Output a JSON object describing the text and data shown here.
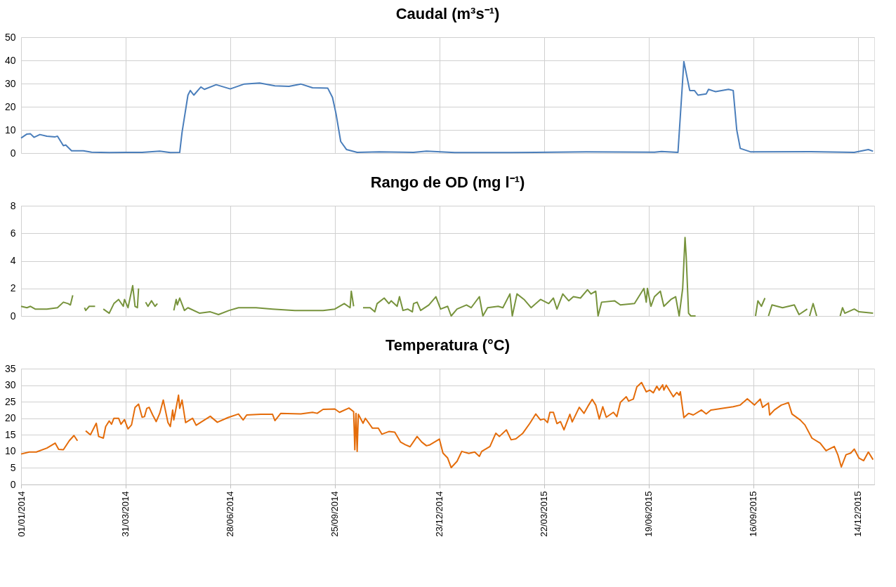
{
  "chart_data": [
    {
      "type": "line",
      "title": "Caudal (m³s⁻¹)",
      "color": "#4a7ebb",
      "grid": true,
      "tick_labels": "y",
      "xlim": [
        "2014-01-01",
        "2015-12-28"
      ],
      "xticks": [
        {
          "value": "2014-01-01",
          "label": null
        },
        {
          "value": "2014-03-31",
          "label": null
        },
        {
          "value": "2014-06-28",
          "label": null
        },
        {
          "value": "2014-09-25",
          "label": null
        },
        {
          "value": "2014-12-23",
          "label": null
        },
        {
          "value": "2015-03-22",
          "label": null
        },
        {
          "value": "2015-06-19",
          "label": null
        },
        {
          "value": "2015-09-16",
          "label": null
        },
        {
          "value": "2015-12-14",
          "label": null
        }
      ],
      "ylim": [
        0,
        50
      ],
      "yticks": [
        0,
        10,
        20,
        30,
        40,
        50
      ],
      "x": [
        "2014-01-01",
        "2014-01-06",
        "2014-01-09",
        "2014-01-12",
        "2014-01-17",
        "2014-01-23",
        "2014-01-30",
        "2014-02-01",
        "2014-02-06",
        "2014-02-08",
        "2014-02-13",
        "2014-02-23",
        "2014-03-02",
        "2014-03-17",
        "2014-03-31",
        "2014-04-14",
        "2014-04-29",
        "2014-05-08",
        "2014-05-16",
        "2014-05-18",
        "2014-05-23",
        "2014-05-25",
        "2014-05-28",
        "2014-06-03",
        "2014-06-06",
        "2014-06-16",
        "2014-06-28",
        "2014-07-10",
        "2014-07-23",
        "2014-08-05",
        "2014-08-17",
        "2014-08-27",
        "2014-09-06",
        "2014-09-19",
        "2014-09-23",
        "2014-09-26",
        "2014-09-30",
        "2014-10-05",
        "2014-10-14",
        "2014-11-02",
        "2014-12-01",
        "2014-12-12",
        "2015-01-05",
        "2015-02-22",
        "2015-04-27",
        "2015-06-24",
        "2015-06-30",
        "2015-07-14",
        "2015-07-19",
        "2015-07-24",
        "2015-07-28",
        "2015-07-31",
        "2015-08-07",
        "2015-08-09",
        "2015-08-15",
        "2015-08-26",
        "2015-08-30",
        "2015-09-02",
        "2015-09-05",
        "2015-09-14",
        "2015-11-04",
        "2015-12-11",
        "2015-12-23",
        "2015-12-27"
      ],
      "values": [
        6.5,
        8.2,
        8.3,
        6.8,
        8.0,
        7.3,
        7.0,
        7.3,
        3.2,
        3.5,
        1.0,
        1.0,
        0.4,
        0.2,
        0.3,
        0.3,
        0.8,
        0.2,
        0.3,
        9,
        25,
        27,
        25,
        28.5,
        27.5,
        29.5,
        27.7,
        29.8,
        30.2,
        29,
        28.8,
        29.8,
        28.2,
        28,
        24,
        17,
        5,
        1.5,
        0.3,
        0.5,
        0.3,
        0.8,
        0.2,
        0.2,
        0.5,
        0.4,
        0.7,
        0.3,
        39.5,
        27,
        27,
        25,
        25.5,
        27.5,
        26.5,
        27.5,
        27,
        10,
        2,
        0.5,
        0.6,
        0.3,
        1.5,
        0.8
      ]
    },
    {
      "type": "line",
      "title": "Rango de OD (mg l⁻¹)",
      "color": "#77933c",
      "grid": true,
      "tick_labels": "y",
      "xlim": [
        "2014-01-01",
        "2015-12-28"
      ],
      "xticks": [
        {
          "value": "2014-01-01",
          "label": null
        },
        {
          "value": "2014-03-31",
          "label": null
        },
        {
          "value": "2014-06-28",
          "label": null
        },
        {
          "value": "2014-09-25",
          "label": null
        },
        {
          "value": "2014-12-23",
          "label": null
        },
        {
          "value": "2015-03-22",
          "label": null
        },
        {
          "value": "2015-06-19",
          "label": null
        },
        {
          "value": "2015-09-16",
          "label": null
        },
        {
          "value": "2015-12-14",
          "label": null
        }
      ],
      "ylim": [
        0,
        8
      ],
      "yticks": [
        0,
        2,
        4,
        6,
        8
      ],
      "x": [
        "2014-01-01",
        "2014-01-06",
        "2014-01-09",
        "2014-01-13",
        "2014-01-23",
        "2014-02-01",
        "2014-02-06",
        "2014-02-10",
        "2014-02-12",
        "2014-02-14",
        "2014-02-17",
        "2014-02-24",
        "2014-02-25",
        "2014-02-28",
        "2014-03-05",
        "2014-03-08",
        "2014-03-12",
        "2014-03-17",
        "2014-03-21",
        "2014-03-25",
        "2014-03-29",
        "2014-03-30",
        "2014-04-02",
        "2014-04-06",
        "2014-04-08",
        "2014-04-10",
        "2014-04-11",
        "2014-04-14",
        "2014-04-17",
        "2014-04-19",
        "2014-04-22",
        "2014-04-25",
        "2014-04-27",
        "2014-05-01",
        "2014-05-11",
        "2014-05-13",
        "2014-05-14",
        "2014-05-16",
        "2014-05-20",
        "2014-05-23",
        "2014-06-02",
        "2014-06-11",
        "2014-06-18",
        "2014-06-27",
        "2014-07-05",
        "2014-07-20",
        "2014-08-03",
        "2014-08-22",
        "2014-09-15",
        "2014-09-25",
        "2014-10-03",
        "2014-10-08",
        "2014-10-09",
        "2014-10-11",
        "2014-10-15",
        "2014-10-19",
        "2014-10-25",
        "2014-10-29",
        "2014-10-31",
        "2014-11-06",
        "2014-11-10",
        "2014-11-12",
        "2014-11-17",
        "2014-11-19",
        "2014-11-22",
        "2014-11-26",
        "2014-11-30",
        "2014-12-01",
        "2014-12-04",
        "2014-12-07",
        "2014-12-14",
        "2014-12-20",
        "2014-12-24",
        "2014-12-30",
        "2015-01-02",
        "2015-01-07",
        "2015-01-15",
        "2015-01-19",
        "2015-01-26",
        "2015-01-29",
        "2015-02-02",
        "2015-02-11",
        "2015-02-15",
        "2015-02-21",
        "2015-02-23",
        "2015-02-27",
        "2015-03-05",
        "2015-03-11",
        "2015-03-19",
        "2015-03-26",
        "2015-03-30",
        "2015-04-02",
        "2015-04-07",
        "2015-04-12",
        "2015-04-16",
        "2015-04-22",
        "2015-04-28",
        "2015-05-01",
        "2015-05-05",
        "2015-05-07",
        "2015-05-10",
        "2015-05-21",
        "2015-05-26",
        "2015-06-07",
        "2015-06-15",
        "2015-06-17",
        "2015-06-18",
        "2015-06-21",
        "2015-06-24",
        "2015-06-29",
        "2015-07-02",
        "2015-07-08",
        "2015-07-12",
        "2015-07-15",
        "2015-07-18",
        "2015-07-20",
        "2015-07-21",
        "2015-07-23",
        "2015-07-25",
        "2015-07-29",
        "2015-08-02",
        "2015-09-18",
        "2015-09-20",
        "2015-09-23",
        "2015-09-26",
        "2015-09-27",
        "2015-09-29",
        "2015-10-02",
        "2015-10-11",
        "2015-10-21",
        "2015-10-25",
        "2015-11-01",
        "2015-11-02",
        "2015-11-03",
        "2015-11-06",
        "2015-11-09",
        "2015-11-12",
        "2015-11-29",
        "2015-12-01",
        "2015-12-03",
        "2015-12-11",
        "2015-12-15",
        "2015-12-27"
      ],
      "values": [
        0.7,
        0.6,
        0.7,
        0.5,
        0.5,
        0.6,
        1.0,
        0.9,
        0.8,
        1.5,
        null,
        0.6,
        0.4,
        0.7,
        0.7,
        null,
        0.5,
        0.2,
        0.9,
        1.2,
        0.7,
        1.2,
        0.6,
        2.2,
        0.7,
        0.6,
        2.0,
        null,
        1.0,
        0.7,
        1.1,
        0.7,
        0.9,
        null,
        0.4,
        1.2,
        0.8,
        1.3,
        0.4,
        0.6,
        0.2,
        0.3,
        0.1,
        0.4,
        0.6,
        0.6,
        0.5,
        0.4,
        0.4,
        0.5,
        0.9,
        0.6,
        1.8,
        0.7,
        null,
        0.6,
        0.6,
        0.3,
        0.9,
        1.3,
        0.9,
        1.1,
        0.7,
        1.4,
        0.4,
        0.5,
        0.3,
        0.9,
        1.0,
        0.4,
        0.8,
        1.4,
        0.5,
        0.7,
        0.0,
        0.5,
        0.8,
        0.6,
        1.4,
        0.0,
        0.6,
        0.7,
        0.6,
        1.6,
        0.0,
        1.6,
        1.2,
        0.6,
        1.2,
        0.9,
        1.3,
        0.5,
        1.6,
        1.1,
        1.4,
        1.3,
        1.9,
        1.6,
        1.8,
        0.0,
        1.0,
        1.1,
        0.8,
        0.9,
        2.0,
        1.0,
        2.0,
        0.7,
        1.4,
        1.8,
        0.7,
        1.2,
        1.4,
        0.0,
        2.0,
        5.7,
        4.3,
        0.2,
        0.0,
        0.0,
        null,
        0.0,
        1.1,
        0.7,
        1.3,
        null,
        0.0,
        0.8,
        0.6,
        0.8,
        0.1,
        0.5,
        null,
        0.0,
        0.9,
        0.0,
        null,
        0.0,
        0.6,
        0.2,
        0.5,
        0.3,
        0.2
      ]
    },
    {
      "type": "line",
      "title": "Temperatura (°C)",
      "color": "#e46c0a",
      "grid": true,
      "xlim": [
        "2014-01-01",
        "2015-12-28"
      ],
      "xticks": [
        {
          "value": "2014-01-01",
          "label": "01/01/2014"
        },
        {
          "value": "2014-03-31",
          "label": "31/03/2014"
        },
        {
          "value": "2014-06-28",
          "label": "28/06/2014"
        },
        {
          "value": "2014-09-25",
          "label": "25/09/2014"
        },
        {
          "value": "2014-12-23",
          "label": "23/12/2014"
        },
        {
          "value": "2015-03-22",
          "label": "22/03/2015"
        },
        {
          "value": "2015-06-19",
          "label": "19/06/2015"
        },
        {
          "value": "2015-09-16",
          "label": "16/09/2015"
        },
        {
          "value": "2015-12-14",
          "label": "14/12/2015"
        }
      ],
      "ylim": [
        0,
        35
      ],
      "yticks": [
        0,
        5,
        10,
        15,
        20,
        25,
        30,
        35
      ],
      "x": [
        "2014-01-01",
        "2014-01-08",
        "2014-01-14",
        "2014-01-23",
        "2014-01-30",
        "2014-02-02",
        "2014-02-06",
        "2014-02-11",
        "2014-02-15",
        "2014-02-18",
        "2014-02-21",
        "2014-02-25",
        "2014-03-01",
        "2014-03-06",
        "2014-03-08",
        "2014-03-12",
        "2014-03-14",
        "2014-03-17",
        "2014-03-19",
        "2014-03-21",
        "2014-03-25",
        "2014-03-27",
        "2014-03-30",
        "2014-04-02",
        "2014-04-05",
        "2014-04-08",
        "2014-04-11",
        "2014-04-14",
        "2014-04-16",
        "2014-04-18",
        "2014-04-20",
        "2014-04-23",
        "2014-04-26",
        "2014-04-29",
        "2014-05-02",
        "2014-05-06",
        "2014-05-08",
        "2014-05-10",
        "2014-05-11",
        "2014-05-15",
        "2014-05-16",
        "2014-05-18",
        "2014-05-21",
        "2014-05-27",
        "2014-05-30",
        "2014-06-11",
        "2014-06-17",
        "2014-06-26",
        "2014-07-05",
        "2014-07-09",
        "2014-07-12",
        "2014-07-24",
        "2014-08-03",
        "2014-08-05",
        "2014-08-10",
        "2014-08-27",
        "2014-09-06",
        "2014-09-10",
        "2014-09-15",
        "2014-09-25",
        "2014-09-29",
        "2014-10-07",
        "2014-10-11",
        "2014-10-12",
        "2014-10-13",
        "2014-10-14",
        "2014-10-15",
        "2014-10-19",
        "2014-10-21",
        "2014-10-24",
        "2014-10-27",
        "2014-11-01",
        "2014-11-04",
        "2014-11-10",
        "2014-11-15",
        "2014-11-20",
        "2014-11-24",
        "2014-11-28",
        "2014-12-04",
        "2014-12-08",
        "2014-12-12",
        "2014-12-15",
        "2014-12-23",
        "2014-12-26",
        "2014-12-30",
        "2015-01-02",
        "2015-01-07",
        "2015-01-11",
        "2015-01-17",
        "2015-01-22",
        "2015-01-26",
        "2015-01-28",
        "2015-02-04",
        "2015-02-09",
        "2015-02-12",
        "2015-02-18",
        "2015-02-22",
        "2015-02-26",
        "2015-03-04",
        "2015-03-10",
        "2015-03-15",
        "2015-03-19",
        "2015-03-22",
        "2015-03-25",
        "2015-03-27",
        "2015-03-30",
        "2015-04-02",
        "2015-04-05",
        "2015-04-08",
        "2015-04-13",
        "2015-04-15",
        "2015-04-21",
        "2015-04-25",
        "2015-04-29",
        "2015-05-02",
        "2015-05-05",
        "2015-05-08",
        "2015-05-11",
        "2015-05-14",
        "2015-05-20",
        "2015-05-23",
        "2015-05-26",
        "2015-05-31",
        "2015-06-02",
        "2015-06-06",
        "2015-06-09",
        "2015-06-13",
        "2015-06-17",
        "2015-06-20",
        "2015-06-23",
        "2015-06-26",
        "2015-06-28",
        "2015-07-01",
        "2015-07-02",
        "2015-07-04",
        "2015-07-10",
        "2015-07-13",
        "2015-07-15",
        "2015-07-16",
        "2015-07-19",
        "2015-07-23",
        "2015-07-27",
        "2015-08-03",
        "2015-08-07",
        "2015-08-11",
        "2015-08-21",
        "2015-08-30",
        "2015-09-05",
        "2015-09-11",
        "2015-09-17",
        "2015-09-22",
        "2015-09-24",
        "2015-09-29",
        "2015-09-30",
        "2015-10-04",
        "2015-10-10",
        "2015-10-16",
        "2015-10-19",
        "2015-10-26",
        "2015-10-30",
        "2015-11-05",
        "2015-11-12",
        "2015-11-17",
        "2015-11-24",
        "2015-11-27",
        "2015-11-30",
        "2015-12-04",
        "2015-12-08",
        "2015-12-11",
        "2015-12-15",
        "2015-12-19",
        "2015-12-23",
        "2015-12-27"
      ],
      "values": [
        9.2,
        9.8,
        9.8,
        11.0,
        12.5,
        10.6,
        10.5,
        13.2,
        14.8,
        13.2,
        null,
        16.2,
        15.0,
        18.5,
        14.5,
        14.0,
        17.5,
        19.2,
        18.2,
        20.0,
        20.0,
        18.2,
        19.6,
        16.8,
        18.0,
        23.3,
        24.3,
        20.3,
        20.5,
        23.0,
        23.3,
        21.0,
        19.0,
        21.5,
        25.5,
        18.7,
        17.5,
        22.5,
        19.5,
        27.0,
        23.0,
        25.5,
        18.7,
        20.0,
        17.9,
        20.6,
        18.8,
        20.2,
        21.3,
        19.5,
        21.0,
        21.2,
        21.2,
        19.3,
        21.5,
        21.3,
        21.8,
        21.5,
        22.7,
        22.8,
        21.8,
        23.1,
        22.0,
        10.5,
        21.5,
        10.0,
        21.2,
        18.5,
        20.0,
        18.5,
        17.0,
        17.0,
        15.2,
        16.0,
        15.8,
        12.8,
        12.0,
        11.4,
        14.5,
        12.8,
        11.7,
        12.0,
        13.7,
        9.5,
        8.0,
        5.1,
        7.0,
        10.0,
        9.4,
        9.8,
        8.5,
        10.0,
        11.5,
        15.5,
        14.5,
        16.5,
        13.5,
        13.8,
        15.5,
        18.5,
        21.3,
        19.5,
        19.8,
        18.7,
        21.8,
        21.8,
        18.4,
        19.0,
        16.5,
        21.2,
        18.9,
        23.3,
        21.5,
        24.0,
        25.7,
        24.0,
        19.8,
        23.5,
        20.3,
        21.8,
        20.5,
        24.8,
        26.5,
        25.2,
        25.8,
        29.5,
        30.8,
        28.0,
        28.5,
        27.7,
        29.7,
        28.5,
        30.1,
        28.5,
        30.0,
        26.5,
        27.8,
        27.0,
        28.0,
        20.2,
        21.5,
        21.0,
        22.5,
        21.3,
        22.5,
        23.0,
        23.5,
        24.0,
        25.9,
        24.0,
        25.8,
        23.3,
        24.6,
        21.0,
        22.5,
        24.0,
        24.7,
        21.3,
        19.5,
        18.0,
        14.0,
        12.5,
        10.2,
        11.5,
        9.0,
        5.3,
        9.0,
        9.5,
        10.7,
        8.0,
        7.2,
        9.8,
        7.5
      ]
    }
  ]
}
